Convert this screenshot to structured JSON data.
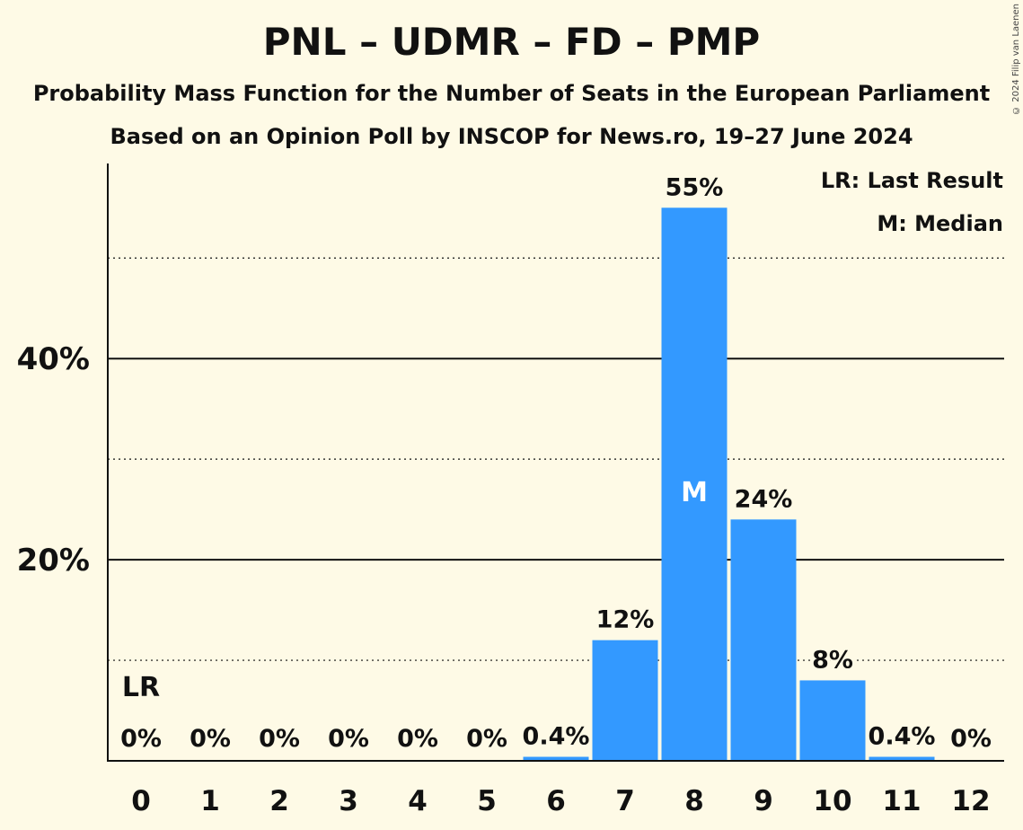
{
  "title": "PNL – UDMR – FD – PMP",
  "subtitle": "Probability Mass Function for the Number of Seats in the European Parliament",
  "subtitle2": "Based on an Opinion Poll by INSCOP for News.ro, 19–27 June 2024",
  "copyright": "© 2024 Filip van Laenen",
  "legend": {
    "lr": "LR: Last Result",
    "m": "M: Median"
  },
  "colors": {
    "bar": "#3399ff",
    "background": "#fefae6"
  },
  "chart_data": {
    "type": "bar",
    "categories": [
      "0",
      "1",
      "2",
      "3",
      "4",
      "5",
      "6",
      "7",
      "8",
      "9",
      "10",
      "11",
      "12"
    ],
    "values": [
      0,
      0,
      0,
      0,
      0,
      0,
      0.4,
      12,
      55,
      24,
      8,
      0.4,
      0
    ],
    "value_labels": [
      "0%",
      "0%",
      "0%",
      "0%",
      "0%",
      "0%",
      "0.4%",
      "12%",
      "55%",
      "24%",
      "8%",
      "0.4%",
      "0%"
    ],
    "ylim": [
      0,
      59.4
    ],
    "yticks": [
      {
        "value": 20,
        "label": "20%"
      },
      {
        "value": 40,
        "label": "40%"
      }
    ],
    "minor_gridlines": [
      10,
      30,
      50
    ],
    "last_result_index": 0,
    "last_result_label": "LR",
    "median_index": 8,
    "median_label": "M"
  }
}
